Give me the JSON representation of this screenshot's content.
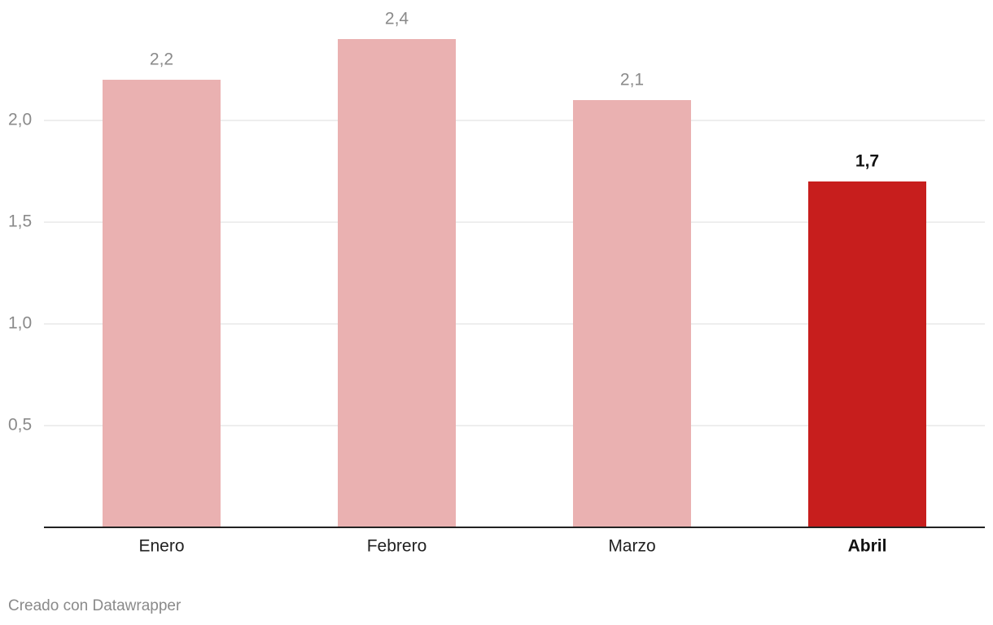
{
  "chart_data": {
    "type": "bar",
    "categories": [
      "Enero",
      "Febrero",
      "Marzo",
      "Abril"
    ],
    "values": [
      2.2,
      2.4,
      2.1,
      1.7
    ],
    "value_labels": [
      "2,2",
      "2,4",
      "2,1",
      "1,7"
    ],
    "colors": [
      "#eab1b1",
      "#eab1b1",
      "#eab1b1",
      "#c71e1d"
    ],
    "highlight": 3,
    "ylim": [
      0,
      2.4
    ],
    "yticks": [
      {
        "value": 0.5,
        "label": "0,5"
      },
      {
        "value": 1.0,
        "label": "1,0"
      },
      {
        "value": 1.5,
        "label": "1,5"
      },
      {
        "value": 2.0,
        "label": "2,0"
      }
    ],
    "grid": true,
    "footer": "Creado con Datawrapper"
  }
}
